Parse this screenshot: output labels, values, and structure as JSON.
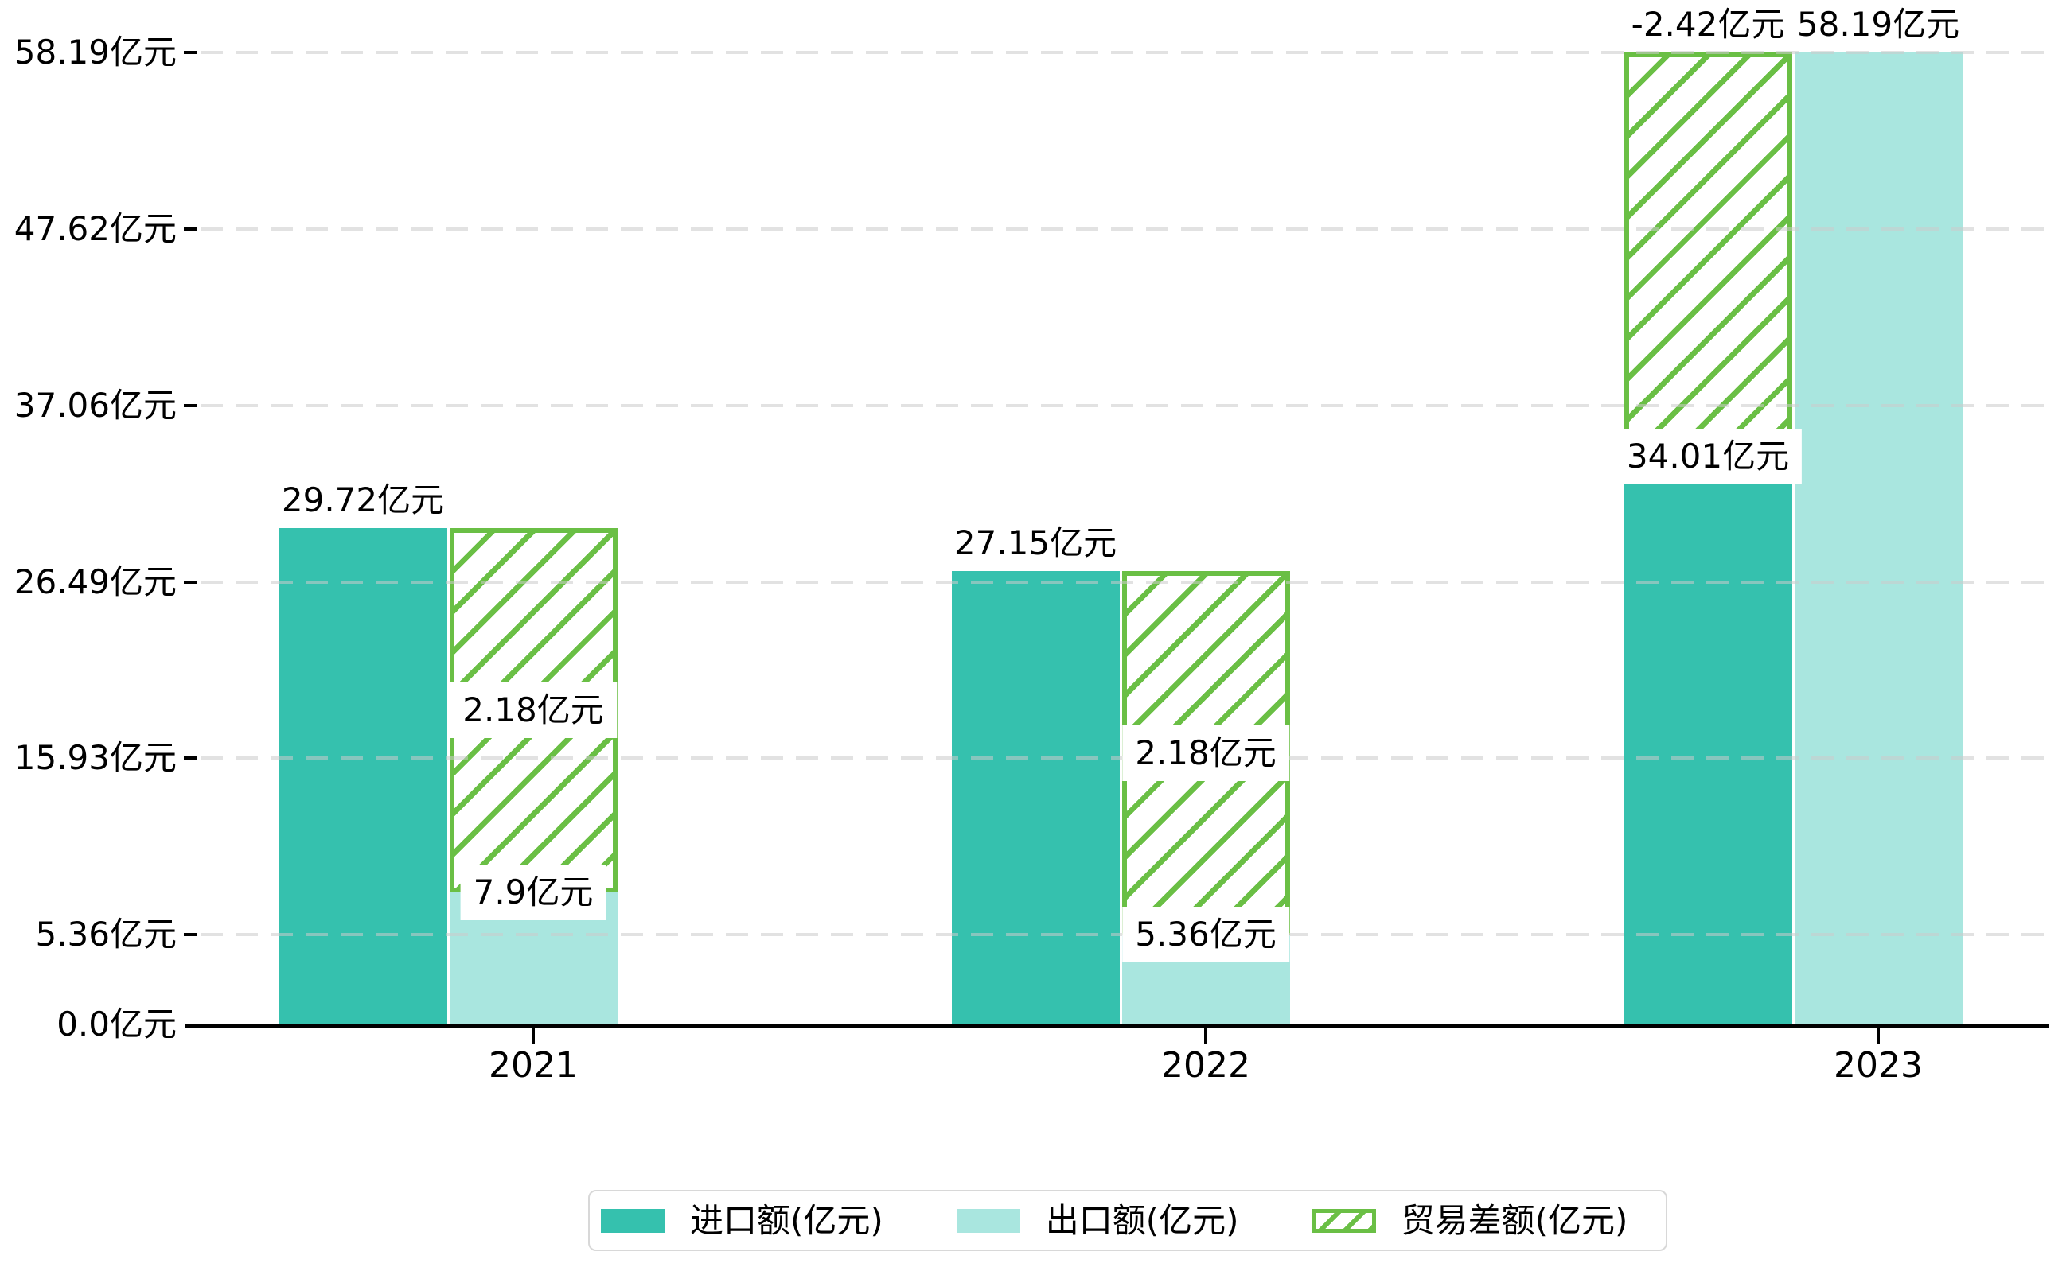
{
  "chart_data": {
    "type": "bar",
    "title": "",
    "categories": [
      "2021",
      "2022",
      "2023"
    ],
    "series": [
      {
        "name": "进口额(亿元)",
        "values": [
          29.72,
          27.15,
          34.01
        ],
        "labels": [
          "29.72亿元",
          "27.15亿元",
          "34.01亿元"
        ],
        "color": "#35c1ae",
        "style": "solid"
      },
      {
        "name": "出口额(亿元)",
        "values": [
          7.9,
          5.36,
          58.19
        ],
        "labels": [
          "7.9亿元",
          "5.36亿元",
          "58.19亿元"
        ],
        "color": "#a9e6df",
        "style": "solid"
      },
      {
        "name": "贸易差额(亿元)",
        "values": [
          2.18,
          2.18,
          -2.42
        ],
        "labels": [
          "2.18亿元",
          "2.18亿元",
          "-2.42亿元"
        ],
        "color": "#6abf45",
        "style": "hatched",
        "drawn_as": "hatched bar spanning the gap between import bar top and export bar top"
      }
    ],
    "y_ticks": [
      {
        "label": "0.0亿元",
        "value": 0.0
      },
      {
        "label": "5.36亿元",
        "value": 5.36
      },
      {
        "label": "15.93亿元",
        "value": 15.93
      },
      {
        "label": "26.49亿元",
        "value": 26.49
      },
      {
        "label": "37.06亿元",
        "value": 37.06
      },
      {
        "label": "47.62亿元",
        "value": 47.62
      },
      {
        "label": "58.19亿元",
        "value": 58.19
      }
    ],
    "x_tick_labels": [
      "2021",
      "2022",
      "2023"
    ],
    "ylim": [
      0,
      58.19
    ],
    "grid": "horizontal-dashed",
    "legend_position": "bottom-center",
    "unit": "亿元"
  },
  "colors": {
    "import_bar": "#35c1ae",
    "export_bar": "#a9e6df",
    "balance_hatch": "#6abf45",
    "gridline": "#cbcbcb",
    "axis": "#000000",
    "legend_border": "#d8d8d8",
    "background": "#ffffff"
  }
}
